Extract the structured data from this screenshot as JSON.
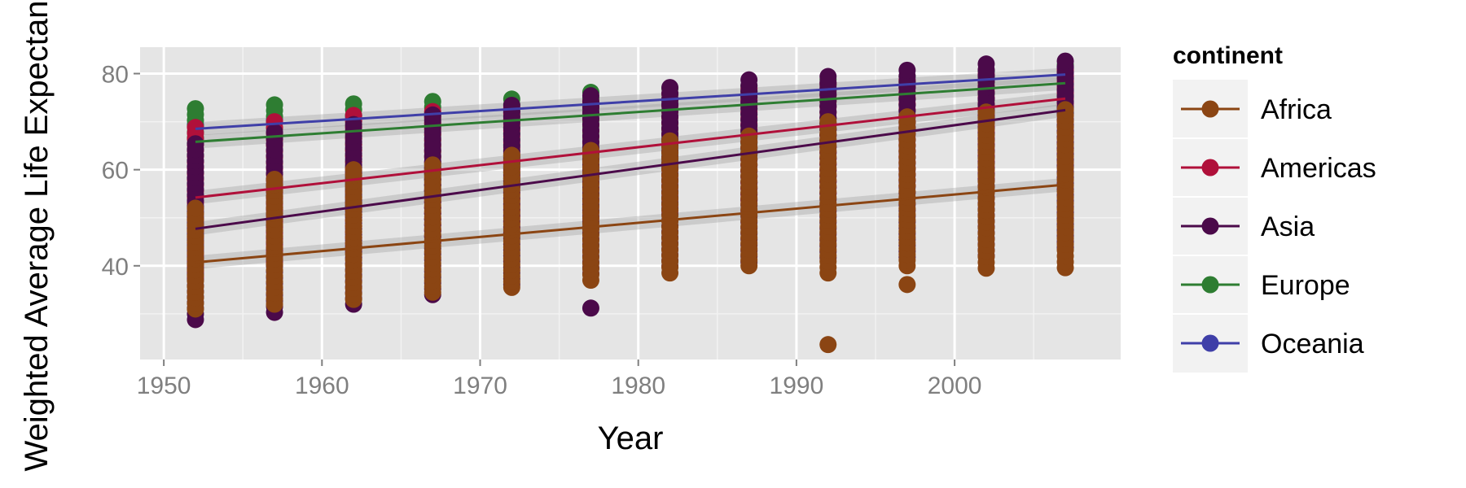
{
  "chart_data": {
    "type": "scatter",
    "xlabel": "Year",
    "ylabel": "Weighted Average Life Expectancy",
    "xlim": [
      1948.5,
      2010.5
    ],
    "ylim": [
      20.5,
      85.5
    ],
    "x_ticks": [
      1950,
      1960,
      1970,
      1980,
      1990,
      2000
    ],
    "y_ticks": [
      40,
      60,
      80
    ],
    "grid": true,
    "legend": {
      "title": "continent",
      "position": "right"
    },
    "years": [
      1952,
      1957,
      1962,
      1967,
      1972,
      1977,
      1982,
      1987,
      1992,
      1997,
      2002,
      2007
    ],
    "series": [
      {
        "name": "Africa",
        "color": "#8B4513",
        "trend": [
          [
            1952,
            40.7
          ],
          [
            2007,
            56.9
          ]
        ],
        "points": [
          {
            "x": 1952,
            "min": 31,
            "max": 52
          },
          {
            "x": 1957,
            "min": 32,
            "max": 58
          },
          {
            "x": 1962,
            "min": 33,
            "max": 60
          },
          {
            "x": 1967,
            "min": 34.5,
            "max": 61
          },
          {
            "x": 1972,
            "min": 35.5,
            "max": 63
          },
          {
            "x": 1977,
            "min": 37,
            "max": 64
          },
          {
            "x": 1982,
            "min": 38.5,
            "max": 66
          },
          {
            "x": 1987,
            "min": 40,
            "max": 67
          },
          {
            "x": 1992,
            "min": 38.5,
            "max": 70
          },
          {
            "x": 1997,
            "min": 40,
            "max": 71
          },
          {
            "x": 2002,
            "min": 39.5,
            "max": 72
          },
          {
            "x": 2007,
            "min": 39.6,
            "max": 72.5
          }
        ],
        "outliers": [
          [
            1992,
            23.6
          ],
          [
            1997,
            36.1
          ]
        ]
      },
      {
        "name": "Americas",
        "color": "#B0103A",
        "trend": [
          [
            1952,
            54.2
          ],
          [
            2007,
            74.8
          ]
        ],
        "points": [
          {
            "x": 1952,
            "min": 37.6,
            "max": 68.8
          },
          {
            "x": 1957,
            "min": 40.7,
            "max": 70
          },
          {
            "x": 1962,
            "min": 43.4,
            "max": 71.3
          },
          {
            "x": 1967,
            "min": 45.0,
            "max": 72.1
          },
          {
            "x": 1972,
            "min": 46.7,
            "max": 72.9
          },
          {
            "x": 1977,
            "min": 49.9,
            "max": 74.2
          },
          {
            "x": 1982,
            "min": 51.5,
            "max": 75.8
          },
          {
            "x": 1987,
            "min": 53.6,
            "max": 76.9
          },
          {
            "x": 1992,
            "min": 55.1,
            "max": 77.9
          },
          {
            "x": 1997,
            "min": 56.7,
            "max": 78.6
          },
          {
            "x": 2002,
            "min": 58.1,
            "max": 79.8
          },
          {
            "x": 2007,
            "min": 60.9,
            "max": 80.7
          }
        ],
        "outliers": []
      },
      {
        "name": "Asia",
        "color": "#4B0A4A",
        "trend": [
          [
            1952,
            47.7
          ],
          [
            2007,
            72.4
          ]
        ],
        "points": [
          {
            "x": 1952,
            "min": 28.8,
            "max": 65.4
          },
          {
            "x": 1957,
            "min": 30.3,
            "max": 67.8
          },
          {
            "x": 1962,
            "min": 32.0,
            "max": 69.4
          },
          {
            "x": 1967,
            "min": 34.0,
            "max": 71.4
          },
          {
            "x": 1972,
            "min": 36.1,
            "max": 73.4
          },
          {
            "x": 1977,
            "min": 38.4,
            "max": 75.4
          },
          {
            "x": 1982,
            "min": 39.9,
            "max": 77.1
          },
          {
            "x": 1987,
            "min": 40.8,
            "max": 78.7
          },
          {
            "x": 1992,
            "min": 41.7,
            "max": 79.4
          },
          {
            "x": 1997,
            "min": 41.8,
            "max": 80.7
          },
          {
            "x": 2002,
            "min": 42.1,
            "max": 82.0
          },
          {
            "x": 2007,
            "min": 43.8,
            "max": 82.6
          }
        ],
        "outliers": [
          [
            1977,
            31.2
          ]
        ]
      },
      {
        "name": "Europe",
        "color": "#2E7D32",
        "trend": [
          [
            1952,
            65.8
          ],
          [
            2007,
            78.0
          ]
        ],
        "points": [
          {
            "x": 1952,
            "min": 43.6,
            "max": 72.7
          },
          {
            "x": 1957,
            "min": 48.1,
            "max": 73.5
          },
          {
            "x": 1962,
            "min": 52.1,
            "max": 73.7
          },
          {
            "x": 1967,
            "min": 54.3,
            "max": 74.2
          },
          {
            "x": 1972,
            "min": 57.0,
            "max": 74.7
          },
          {
            "x": 1977,
            "min": 59.5,
            "max": 76.1
          },
          {
            "x": 1982,
            "min": 61.0,
            "max": 76.9
          },
          {
            "x": 1987,
            "min": 63.1,
            "max": 77.4
          },
          {
            "x": 1992,
            "min": 66.1,
            "max": 78.8
          },
          {
            "x": 1997,
            "min": 68.8,
            "max": 79.4
          },
          {
            "x": 2002,
            "min": 70.8,
            "max": 80.6
          },
          {
            "x": 2007,
            "min": 71.8,
            "max": 81.8
          }
        ],
        "outliers": []
      },
      {
        "name": "Oceania",
        "color": "#3F3FA8",
        "trend": [
          [
            1952,
            68.5
          ],
          [
            2007,
            79.8
          ]
        ],
        "points": [
          {
            "x": 1952,
            "min": 69.1,
            "max": 69.4
          },
          {
            "x": 1957,
            "min": 70.3,
            "max": 70.3
          },
          {
            "x": 1962,
            "min": 70.9,
            "max": 71.2
          },
          {
            "x": 1967,
            "min": 71.1,
            "max": 71.5
          },
          {
            "x": 1972,
            "min": 71.9,
            "max": 71.9
          },
          {
            "x": 1977,
            "min": 72.2,
            "max": 73.5
          },
          {
            "x": 1982,
            "min": 73.8,
            "max": 74.7
          },
          {
            "x": 1987,
            "min": 74.3,
            "max": 76.3
          },
          {
            "x": 1992,
            "min": 76.3,
            "max": 77.6
          },
          {
            "x": 1997,
            "min": 77.6,
            "max": 78.8
          },
          {
            "x": 2002,
            "min": 79.1,
            "max": 80.4
          },
          {
            "x": 2007,
            "min": 80.2,
            "max": 81.2
          }
        ],
        "outliers": []
      }
    ]
  }
}
